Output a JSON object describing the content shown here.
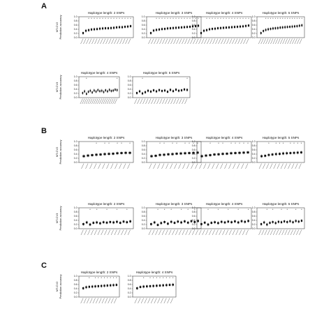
{
  "figure": {
    "sections": [
      {
        "letter": "A",
        "rows": [
          {
            "ylabel_lines": [
              "MT-CV2",
              "Prediction accuracy"
            ],
            "panels": [
              {
                "title": "Haplotype length: 2 SNPs",
                "values": [
                  0.22,
                  0.33,
                  0.36,
                  0.39,
                  0.4,
                  0.41,
                  0.43,
                  0.44,
                  0.45,
                  0.45,
                  0.46,
                  0.47,
                  0.49,
                  0.5,
                  0.5,
                  0.52,
                  0.53,
                  0.55
                ],
                "marks": [
                  0,
                  0,
                  1,
                  1,
                  1,
                  1,
                  1,
                  1,
                  1,
                  1,
                  1,
                  1,
                  1,
                  1,
                  1,
                  1,
                  1,
                  1
                ]
              },
              {
                "title": "Haplotype length: 3 SNPs",
                "values": [
                  0.22,
                  0.34,
                  0.37,
                  0.39,
                  0.41,
                  0.42,
                  0.44,
                  0.45,
                  0.46,
                  0.47,
                  0.48,
                  0.49,
                  0.5,
                  0.51,
                  0.52,
                  0.54,
                  0.55,
                  0.57
                ],
                "marks": [
                  0,
                  0,
                  1,
                  1,
                  1,
                  1,
                  1,
                  1,
                  1,
                  1,
                  1,
                  1,
                  1,
                  1,
                  1,
                  1,
                  1,
                  1
                ]
              },
              {
                "title": "Haplotype length: 4 SNPs",
                "values": [
                  0.22,
                  0.33,
                  0.36,
                  0.4,
                  0.42,
                  0.43,
                  0.45,
                  0.46,
                  0.47,
                  0.48,
                  0.49,
                  0.5,
                  0.51,
                  0.52,
                  0.53,
                  0.54,
                  0.56,
                  0.58
                ],
                "marks": [
                  0,
                  0,
                  1,
                  1,
                  1,
                  1,
                  1,
                  1,
                  1,
                  1,
                  1,
                  1,
                  1,
                  1,
                  1,
                  1,
                  1,
                  1
                ]
              },
              {
                "title": "Haplotype length: 5 SNPs",
                "values": [
                  0.22,
                  0.32,
                  0.37,
                  0.4,
                  0.42,
                  0.44,
                  0.45,
                  0.46,
                  0.48,
                  0.49,
                  0.5,
                  0.51,
                  0.52,
                  0.53,
                  0.54,
                  0.55,
                  0.57,
                  0.59
                ],
                "marks": [
                  0,
                  0,
                  1,
                  1,
                  1,
                  1,
                  1,
                  1,
                  1,
                  1,
                  1,
                  1,
                  1,
                  1,
                  1,
                  1,
                  1,
                  1
                ]
              }
            ]
          },
          {
            "ylabel_lines": [
              "MT-CV3",
              "Prediction accuracy"
            ],
            "panels": [
              {
                "title": "Haplotype length: 4 SNPs",
                "values": [
                  0.22,
                  0.3,
                  0.18,
                  0.28,
                  0.33,
                  0.25,
                  0.34,
                  0.29,
                  0.36,
                  0.31,
                  0.33,
                  0.27,
                  0.35,
                  0.3,
                  0.37,
                  0.32,
                  0.34,
                  0.38,
                  0.36
                ],
                "marks": [
                  0,
                  0,
                  1,
                  0,
                  0,
                  0,
                  0,
                  0,
                  0,
                  0,
                  0,
                  0,
                  0,
                  0,
                  0,
                  0,
                  0,
                  0,
                  1
                ]
              },
              {
                "title": "Haplotype length: 5 SNPs",
                "values": [
                  0.22,
                  0.3,
                  0.2,
                  0.26,
                  0.33,
                  0.29,
                  0.35,
                  0.3,
                  0.36,
                  0.32,
                  0.34,
                  0.28,
                  0.37,
                  0.31,
                  0.38,
                  0.33,
                  0.35,
                  0.39,
                  0.37
                ],
                "marks": [
                  0,
                  0,
                  1,
                  0,
                  0,
                  0,
                  0,
                  0,
                  0,
                  0,
                  0,
                  0,
                  0,
                  0,
                  0,
                  0,
                  0,
                  0,
                  1
                ]
              }
            ]
          }
        ]
      },
      {
        "letter": "B",
        "rows": [
          {
            "ylabel_lines": [
              "MT-CV2",
              "Prediction accuracy"
            ],
            "panels": [
              {
                "title": "Haplotype length: 2 SNPs",
                "values": [
                  0.3,
                  0.33,
                  0.35,
                  0.37,
                  0.38,
                  0.4,
                  0.41,
                  0.42,
                  0.44,
                  0.45,
                  0.46,
                  0.46
                ],
                "marks": [
                  0,
                  0,
                  0,
                  1,
                  0,
                  1,
                  1,
                  0,
                  1,
                  1,
                  0,
                  1
                ]
              },
              {
                "title": "Haplotype length: 3 SNPs",
                "values": [
                  0.3,
                  0.32,
                  0.36,
                  0.37,
                  0.39,
                  0.4,
                  0.42,
                  0.43,
                  0.44,
                  0.45,
                  0.46,
                  0.47
                ],
                "marks": [
                  0,
                  0,
                  1,
                  1,
                  0,
                  1,
                  1,
                  0,
                  1,
                  1,
                  1,
                  1
                ]
              },
              {
                "title": "Haplotype length: 4 SNPs",
                "values": [
                  0.3,
                  0.33,
                  0.35,
                  0.38,
                  0.39,
                  0.41,
                  0.42,
                  0.44,
                  0.45,
                  0.46,
                  0.47,
                  0.48
                ],
                "marks": [
                  0,
                  0,
                  1,
                  0,
                  1,
                  1,
                  0,
                  1,
                  1,
                  1,
                  1,
                  1
                ]
              },
              {
                "title": "Haplotype length: 5 SNPs",
                "values": [
                  0.3,
                  0.32,
                  0.36,
                  0.38,
                  0.4,
                  0.41,
                  0.43,
                  0.44,
                  0.45,
                  0.46,
                  0.47,
                  0.48
                ],
                "marks": [
                  0,
                  0,
                  1,
                  0,
                  1,
                  1,
                  1,
                  0,
                  1,
                  1,
                  1,
                  1
                ]
              }
            ]
          },
          {
            "ylabel_lines": [
              "MT-CV3",
              "Prediction accuracy"
            ],
            "panels": [
              {
                "title": "Haplotype length: 2 SNPs",
                "values": [
                  0.22,
                  0.3,
                  0.2,
                  0.28,
                  0.3,
                  0.26,
                  0.31,
                  0.29,
                  0.32,
                  0.3,
                  0.33,
                  0.28,
                  0.34,
                  0.31,
                  0.35
                ],
                "marks": [
                  0,
                  0,
                  1,
                  0,
                  1,
                  0,
                  0,
                  1,
                  0,
                  0,
                  1,
                  0,
                  0,
                  1,
                  0
                ]
              },
              {
                "title": "Haplotype length: 3 SNPs",
                "values": [
                  0.22,
                  0.3,
                  0.18,
                  0.27,
                  0.32,
                  0.24,
                  0.33,
                  0.28,
                  0.34,
                  0.3,
                  0.35,
                  0.29,
                  0.36,
                  0.32,
                  0.37
                ],
                "marks": [
                  0,
                  0,
                  1,
                  0,
                  1,
                  0,
                  1,
                  0,
                  0,
                  1,
                  0,
                  1,
                  0,
                  1,
                  0
                ]
              },
              {
                "title": "Haplotype length: 4 SNPs",
                "values": [
                  0.22,
                  0.29,
                  0.2,
                  0.28,
                  0.31,
                  0.27,
                  0.33,
                  0.3,
                  0.34,
                  0.31,
                  0.35,
                  0.3,
                  0.36,
                  0.33,
                  0.37
                ],
                "marks": [
                  0,
                  0,
                  1,
                  0,
                  0,
                  1,
                  0,
                  0,
                  1,
                  0,
                  0,
                  1,
                  0,
                  0,
                  1
                ]
              },
              {
                "title": "Haplotype length: 5 SNPs",
                "values": [
                  0.22,
                  0.3,
                  0.2,
                  0.28,
                  0.32,
                  0.27,
                  0.33,
                  0.31,
                  0.35,
                  0.32,
                  0.36,
                  0.31,
                  0.37,
                  0.34,
                  0.38
                ],
                "marks": [
                  0,
                  0,
                  1,
                  0,
                  1,
                  0,
                  0,
                  1,
                  0,
                  1,
                  0,
                  0,
                  1,
                  0,
                  1
                ]
              }
            ]
          }
        ]
      },
      {
        "letter": "C",
        "rows": [
          {
            "ylabel_lines": [
              "MT-CV2",
              "Prediction accuracy"
            ],
            "panels": [
              {
                "title": "Haplotype length: 2 SNPs",
                "values": [
                  0.42,
                  0.47,
                  0.49,
                  0.5,
                  0.51,
                  0.52,
                  0.53,
                  0.54,
                  0.55,
                  0.56,
                  0.57,
                  0.58
                ],
                "marks": [
                  0,
                  0,
                  1,
                  0,
                  1,
                  1,
                  1,
                  1,
                  1,
                  1,
                  1,
                  1
                ]
              },
              {
                "title": "Haplotype length: 4 SNPs",
                "values": [
                  0.42,
                  0.48,
                  0.5,
                  0.51,
                  0.52,
                  0.53,
                  0.54,
                  0.55,
                  0.56,
                  0.57,
                  0.58,
                  0.59
                ],
                "marks": [
                  0,
                  0,
                  1,
                  0,
                  1,
                  1,
                  1,
                  1,
                  1,
                  1,
                  1,
                  1
                ]
              }
            ]
          }
        ]
      }
    ]
  },
  "chart_data": {
    "type": "scatter",
    "title": "",
    "ylabel": "Prediction accuracy",
    "ylim": [
      0.0,
      1.0
    ],
    "yticks": [
      "0.0",
      "0.2",
      "0.4",
      "0.6",
      "0.8",
      "1.0"
    ],
    "significance_marker": "*",
    "note": "Small multiples of accuracy distributions (boxes) per model; x tick labels too small to read."
  }
}
